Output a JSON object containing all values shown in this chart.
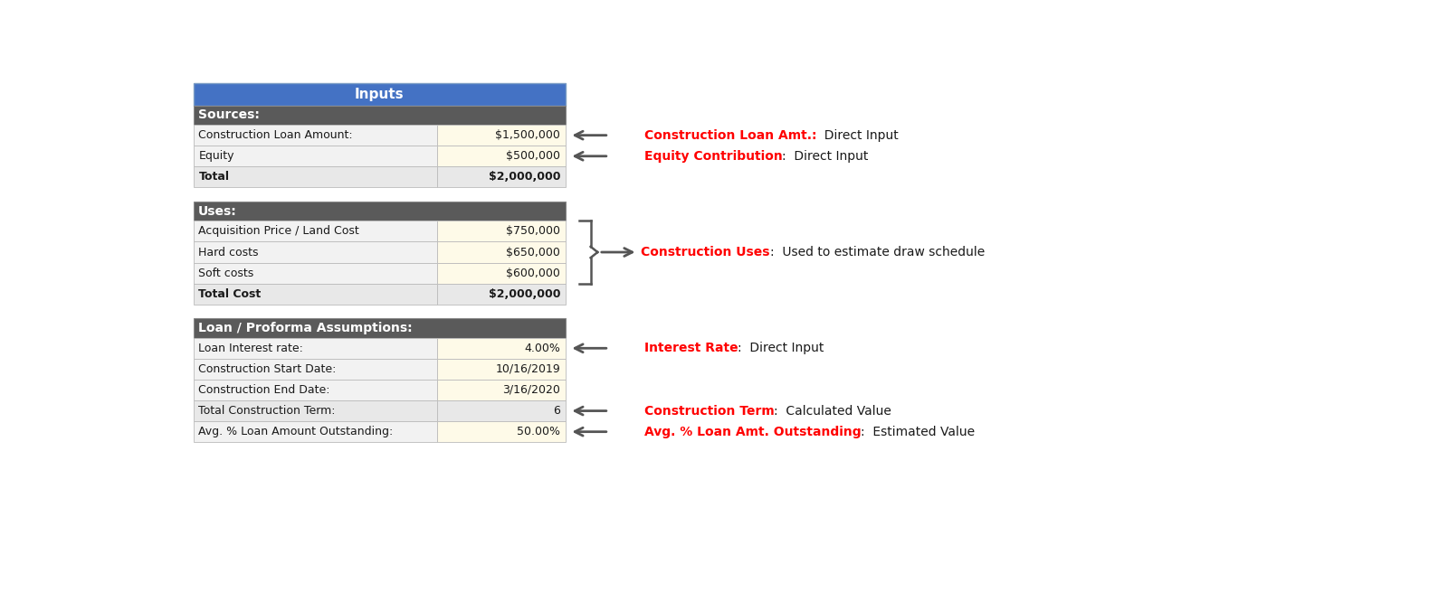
{
  "title": "Inputs",
  "title_bg": "#4472C4",
  "title_text_color": "#FFFFFF",
  "section_bg": "#5A5A5A",
  "section_text_color": "#FFFFFF",
  "row_bg_yellow": "#FEFAE8",
  "row_bg_light": "#F2F2F2",
  "row_bg_total": "#E8E8E8",
  "border_color": "#BBBBBB",
  "sections": [
    {
      "title": "Sources:",
      "rows": [
        {
          "label": "Construction Loan Amount:",
          "value": "$1,500,000",
          "bold_label": false,
          "yellow": true
        },
        {
          "label": "Equity",
          "value": "$500,000",
          "bold_label": false,
          "yellow": true
        },
        {
          "label": "Total",
          "value": "$2,000,000",
          "bold_label": true,
          "yellow": false
        }
      ]
    },
    {
      "title": "Uses:",
      "rows": [
        {
          "label": "Acquisition Price / Land Cost",
          "value": "$750,000",
          "bold_label": false,
          "yellow": true
        },
        {
          "label": "Hard costs",
          "value": "$650,000",
          "bold_label": false,
          "yellow": true
        },
        {
          "label": "Soft costs",
          "value": "$600,000",
          "bold_label": false,
          "yellow": true
        },
        {
          "label": "Total Cost",
          "value": "$2,000,000",
          "bold_label": true,
          "yellow": false
        }
      ]
    },
    {
      "title": "Loan / Proforma Assumptions:",
      "rows": [
        {
          "label": "Loan Interest rate:",
          "value": "4.00%",
          "bold_label": false,
          "yellow": true
        },
        {
          "label": "Construction Start Date:",
          "value": "10/16/2019",
          "bold_label": false,
          "yellow": true
        },
        {
          "label": "Construction End Date:",
          "value": "3/16/2020",
          "bold_label": false,
          "yellow": true
        },
        {
          "label": "Total Construction Term:",
          "value": "6",
          "bold_label": false,
          "yellow": false
        },
        {
          "label": "Avg. % Loan Amount Outstanding:",
          "value": "50.00%",
          "bold_label": false,
          "yellow": true
        }
      ]
    }
  ],
  "ann_arrow_color": "#555555",
  "ann_red": "#FF0000",
  "ann_black": "#1A1A1A"
}
